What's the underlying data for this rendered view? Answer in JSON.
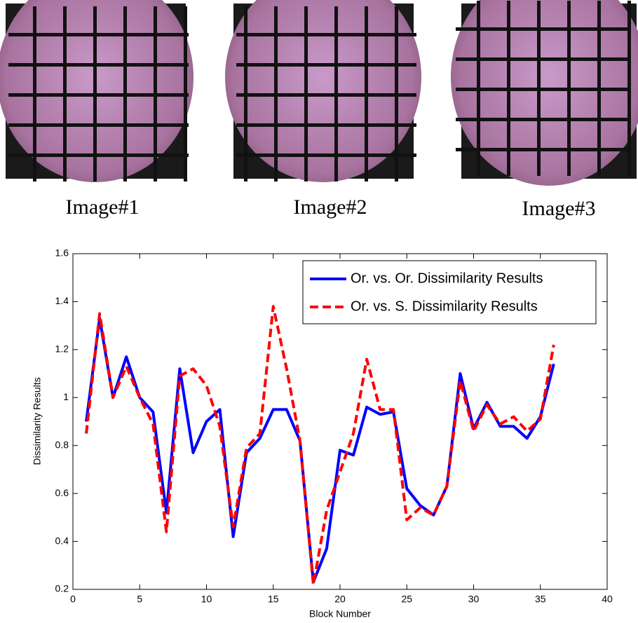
{
  "images": [
    {
      "caption": "Image#1"
    },
    {
      "caption": "Image#2"
    },
    {
      "caption": "Image#3"
    }
  ],
  "chart_data": {
    "type": "line",
    "xlabel": "Block Number",
    "ylabel": "Dissimilarity Results",
    "x": [
      1,
      2,
      3,
      4,
      5,
      6,
      7,
      8,
      9,
      10,
      11,
      12,
      13,
      14,
      15,
      16,
      17,
      18,
      19,
      20,
      21,
      22,
      23,
      24,
      25,
      26,
      27,
      28,
      29,
      30,
      31,
      32,
      33,
      34,
      35,
      36
    ],
    "series": [
      {
        "name": "Or. vs. Or. Dissimilarity Results",
        "color": "#0000ff",
        "dash": false,
        "values": [
          0.9,
          1.33,
          1.0,
          1.17,
          1.0,
          0.94,
          0.52,
          1.12,
          0.77,
          0.9,
          0.95,
          0.42,
          0.77,
          0.83,
          0.95,
          0.95,
          0.82,
          0.23,
          0.37,
          0.78,
          0.76,
          0.96,
          0.93,
          0.94,
          0.62,
          0.55,
          0.51,
          0.63,
          1.1,
          0.87,
          0.98,
          0.88,
          0.88,
          0.83,
          0.92,
          1.14
        ]
      },
      {
        "name": "Or. vs. S. Dissimilarity Results",
        "color": "#ff0000",
        "dash": true,
        "values": [
          0.85,
          1.35,
          1.0,
          1.13,
          1.0,
          0.89,
          0.44,
          1.09,
          1.12,
          1.05,
          0.88,
          0.46,
          0.79,
          0.85,
          1.38,
          1.12,
          0.82,
          0.22,
          0.53,
          0.69,
          0.85,
          1.16,
          0.95,
          0.95,
          0.49,
          0.54,
          0.51,
          0.63,
          1.07,
          0.86,
          0.97,
          0.89,
          0.92,
          0.86,
          0.91,
          1.22
        ]
      }
    ],
    "xlim": [
      0,
      40
    ],
    "xticks": [
      0,
      5,
      10,
      15,
      20,
      25,
      30,
      35,
      40
    ],
    "ylim": [
      0.2,
      1.6
    ],
    "yticks": [
      0.2,
      0.4,
      0.6,
      0.8,
      1,
      1.2,
      1.4,
      1.6
    ],
    "grid": false,
    "legend": "top-right"
  }
}
